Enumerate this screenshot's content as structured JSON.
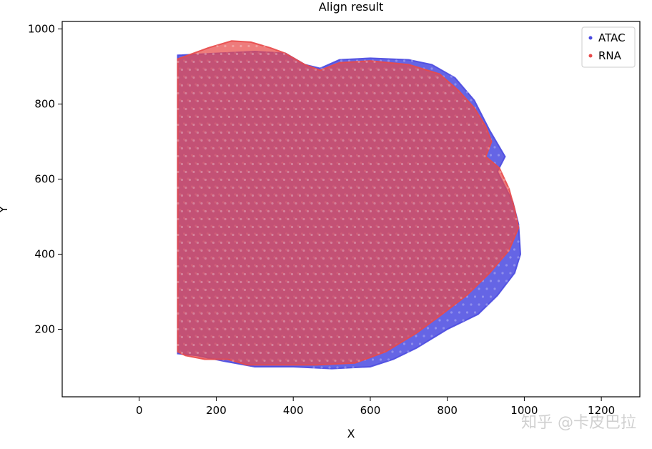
{
  "chart_data": {
    "type": "scatter",
    "title": "Align result",
    "xlabel": "X",
    "ylabel": "Y",
    "xlim": [
      -200,
      1300
    ],
    "ylim": [
      20,
      1020
    ],
    "xticks": [
      0,
      200,
      400,
      600,
      800,
      1000,
      1200
    ],
    "yticks": [
      200,
      400,
      600,
      800,
      1000
    ],
    "grid": false,
    "legend_position": "top-right",
    "series": [
      {
        "name": "ATAC",
        "color": "#4a4ae0",
        "outline": [
          [
            100,
            930
          ],
          [
            200,
            935
          ],
          [
            300,
            940
          ],
          [
            380,
            935
          ],
          [
            430,
            905
          ],
          [
            470,
            895
          ],
          [
            520,
            918
          ],
          [
            600,
            922
          ],
          [
            700,
            918
          ],
          [
            760,
            905
          ],
          [
            820,
            870
          ],
          [
            870,
            810
          ],
          [
            910,
            730
          ],
          [
            950,
            660
          ],
          [
            930,
            620
          ],
          [
            945,
            590
          ],
          [
            970,
            540
          ],
          [
            985,
            480
          ],
          [
            990,
            400
          ],
          [
            975,
            350
          ],
          [
            930,
            290
          ],
          [
            880,
            240
          ],
          [
            800,
            200
          ],
          [
            720,
            150
          ],
          [
            660,
            120
          ],
          [
            600,
            100
          ],
          [
            500,
            95
          ],
          [
            400,
            100
          ],
          [
            300,
            100
          ],
          [
            220,
            115
          ],
          [
            150,
            130
          ],
          [
            100,
            135
          ]
        ]
      },
      {
        "name": "RNA",
        "color": "#e84a4a",
        "outline": [
          [
            100,
            920
          ],
          [
            180,
            950
          ],
          [
            240,
            968
          ],
          [
            290,
            965
          ],
          [
            340,
            950
          ],
          [
            380,
            935
          ],
          [
            430,
            905
          ],
          [
            470,
            890
          ],
          [
            520,
            910
          ],
          [
            600,
            915
          ],
          [
            700,
            905
          ],
          [
            780,
            880
          ],
          [
            830,
            835
          ],
          [
            870,
            790
          ],
          [
            900,
            740
          ],
          [
            915,
            700
          ],
          [
            900,
            660
          ],
          [
            935,
            630
          ],
          [
            960,
            575
          ],
          [
            975,
            520
          ],
          [
            985,
            470
          ],
          [
            960,
            410
          ],
          [
            910,
            350
          ],
          [
            850,
            290
          ],
          [
            780,
            235
          ],
          [
            720,
            190
          ],
          [
            640,
            140
          ],
          [
            560,
            110
          ],
          [
            460,
            105
          ],
          [
            340,
            105
          ],
          [
            280,
            105
          ],
          [
            230,
            120
          ],
          [
            170,
            120
          ],
          [
            120,
            130
          ],
          [
            100,
            140
          ]
        ]
      }
    ]
  },
  "watermark": "知乎 @卡皮巴拉"
}
